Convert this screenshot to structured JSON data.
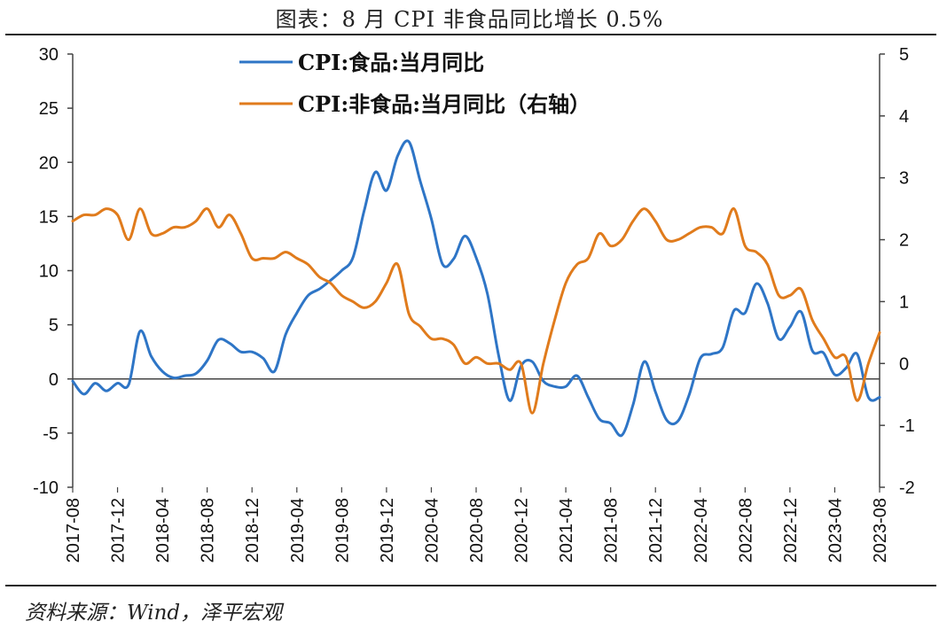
{
  "title": "图表：8 月 CPI 非食品同比增长 0.5%",
  "source": "资料来源：Wind，泽平宏观",
  "chart_data": {
    "type": "line",
    "x_labels": [
      "2017-08",
      "2017-12",
      "2018-04",
      "2018-08",
      "2018-12",
      "2019-04",
      "2019-08",
      "2019-12",
      "2020-04",
      "2020-08",
      "2020-12",
      "2021-04",
      "2021-08",
      "2021-12",
      "2022-04",
      "2022-08",
      "2022-12",
      "2023-04",
      "2023-08"
    ],
    "x": [
      "2017-08",
      "2017-09",
      "2017-10",
      "2017-11",
      "2017-12",
      "2018-01",
      "2018-02",
      "2018-03",
      "2018-04",
      "2018-05",
      "2018-06",
      "2018-07",
      "2018-08",
      "2018-09",
      "2018-10",
      "2018-11",
      "2018-12",
      "2019-01",
      "2019-02",
      "2019-03",
      "2019-04",
      "2019-05",
      "2019-06",
      "2019-07",
      "2019-08",
      "2019-09",
      "2019-10",
      "2019-11",
      "2019-12",
      "2020-01",
      "2020-02",
      "2020-03",
      "2020-04",
      "2020-05",
      "2020-06",
      "2020-07",
      "2020-08",
      "2020-09",
      "2020-10",
      "2020-11",
      "2020-12",
      "2021-01",
      "2021-02",
      "2021-03",
      "2021-04",
      "2021-05",
      "2021-06",
      "2021-07",
      "2021-08",
      "2021-09",
      "2021-10",
      "2021-11",
      "2021-12",
      "2022-01",
      "2022-02",
      "2022-03",
      "2022-04",
      "2022-05",
      "2022-06",
      "2022-07",
      "2022-08",
      "2022-09",
      "2022-10",
      "2022-11",
      "2022-12",
      "2023-01",
      "2023-02",
      "2023-03",
      "2023-04",
      "2023-05",
      "2023-06",
      "2023-07",
      "2023-08"
    ],
    "left_axis": {
      "ylim": [
        -10,
        30
      ],
      "ticks": [
        "-10",
        "-5",
        "0",
        "5",
        "10",
        "15",
        "20",
        "25",
        "30"
      ]
    },
    "right_axis": {
      "ylim": [
        -2,
        5
      ],
      "ticks": [
        "-2",
        "-1",
        "0",
        "1",
        "2",
        "3",
        "4",
        "5"
      ]
    },
    "series": [
      {
        "name": "CPI:食品:当月同比",
        "axis": "left",
        "color": "#2E75C6",
        "values": [
          -0.2,
          -1.4,
          -0.4,
          -1.1,
          -0.4,
          -0.5,
          4.4,
          2.1,
          0.7,
          0.1,
          0.3,
          0.5,
          1.7,
          3.6,
          3.3,
          2.5,
          2.5,
          1.9,
          0.7,
          4.1,
          6.1,
          7.7,
          8.3,
          9.1,
          10.0,
          11.2,
          15.5,
          19.1,
          17.4,
          20.6,
          21.9,
          18.3,
          14.8,
          10.6,
          11.1,
          13.2,
          11.2,
          7.9,
          2.2,
          -2.0,
          1.2,
          1.6,
          -0.2,
          -0.7,
          -0.7,
          0.3,
          -1.7,
          -3.7,
          -4.1,
          -5.2,
          -2.4,
          1.6,
          -1.2,
          -3.8,
          -3.9,
          -1.5,
          1.9,
          2.3,
          2.9,
          6.3,
          6.1,
          8.8,
          7.0,
          3.7,
          4.8,
          6.2,
          2.6,
          2.4,
          0.4,
          1.0,
          2.3,
          -1.7,
          -1.7
        ]
      },
      {
        "name": "CPI:非食品:当月同比（右轴）",
        "axis": "right",
        "color": "#E07B1C",
        "values": [
          2.3,
          2.4,
          2.4,
          2.5,
          2.4,
          2.0,
          2.5,
          2.1,
          2.1,
          2.2,
          2.2,
          2.3,
          2.5,
          2.2,
          2.4,
          2.1,
          1.7,
          1.7,
          1.7,
          1.8,
          1.7,
          1.6,
          1.4,
          1.3,
          1.1,
          1.0,
          0.9,
          1.0,
          1.3,
          1.6,
          0.8,
          0.6,
          0.4,
          0.4,
          0.3,
          0.0,
          0.1,
          0.0,
          0.0,
          -0.1,
          0.0,
          -0.8,
          0.0,
          0.7,
          1.3,
          1.6,
          1.7,
          2.1,
          1.9,
          2.0,
          2.3,
          2.5,
          2.3,
          2.0,
          2.0,
          2.1,
          2.2,
          2.2,
          2.1,
          2.5,
          1.9,
          1.8,
          1.6,
          1.1,
          1.1,
          1.2,
          0.7,
          0.4,
          0.1,
          0.1,
          -0.6,
          0.0,
          0.5
        ]
      }
    ],
    "grid": false,
    "legend_position": "top-left inside"
  }
}
